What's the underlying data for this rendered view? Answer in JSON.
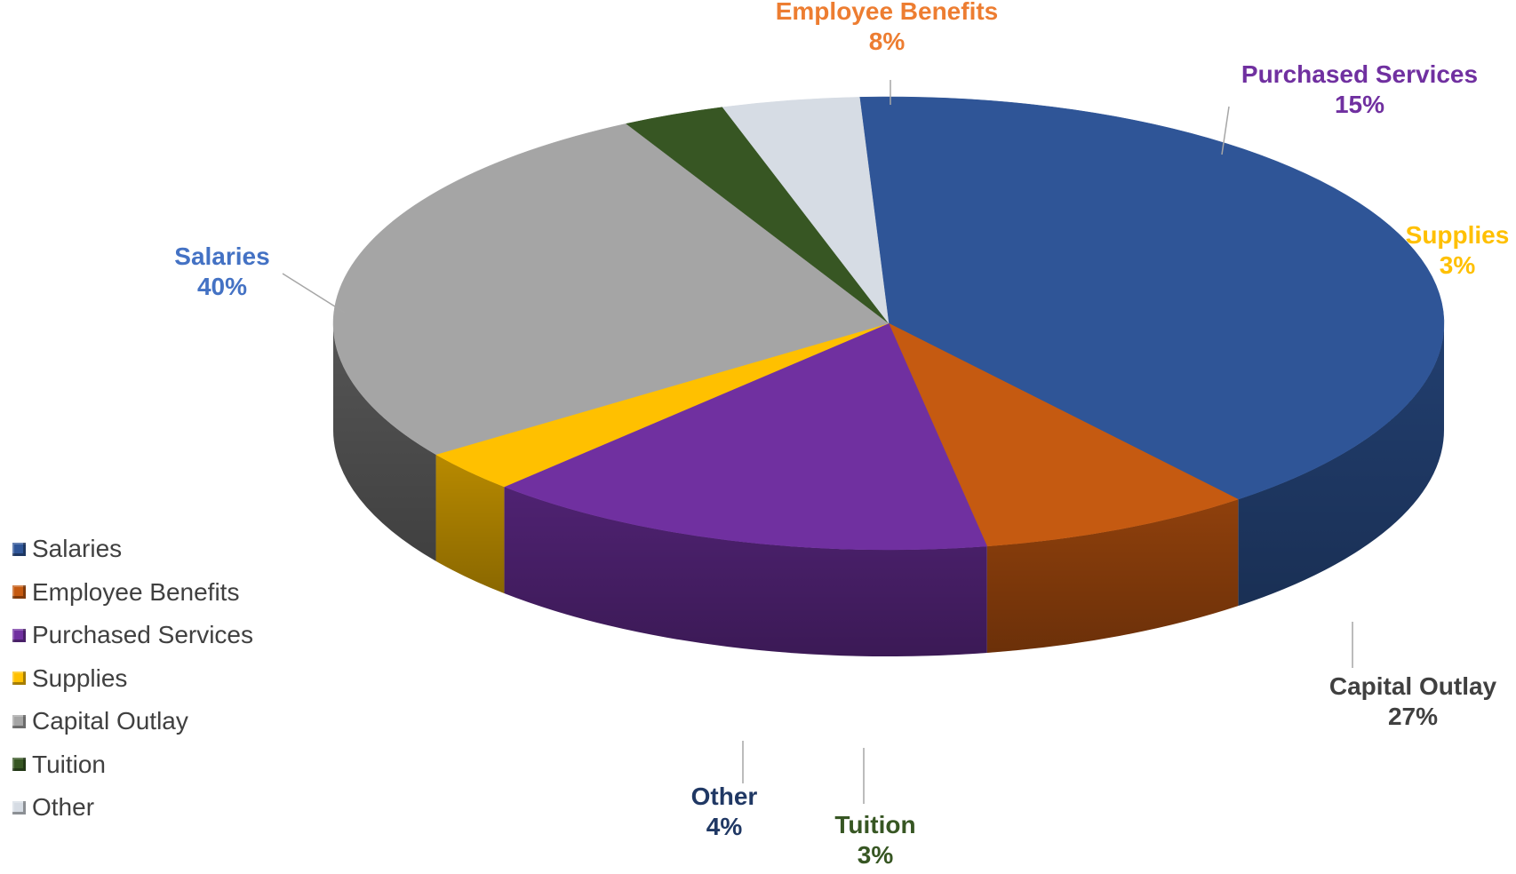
{
  "chart_data": {
    "type": "pie",
    "style": "3d",
    "title": "",
    "slices": [
      {
        "name": "Salaries",
        "value": 40,
        "label": "Salaries",
        "pct_label": "40%",
        "color": "#2F5597",
        "side": "#223F70",
        "label_color": "#4472C4"
      },
      {
        "name": "Employee Benefits",
        "value": 8,
        "label": "Employee Benefits",
        "pct_label": "8%",
        "color": "#C55A11",
        "side": "#8F400C",
        "label_color": "#ED7D31"
      },
      {
        "name": "Purchased Services",
        "value": 15,
        "label": "Purchased Services",
        "pct_label": "15%",
        "color": "#7030A0",
        "side": "#4F2272",
        "label_color": "#7030A0"
      },
      {
        "name": "Supplies",
        "value": 3,
        "label": "Supplies",
        "pct_label": "3%",
        "color": "#FFC000",
        "side": "#B88A00",
        "label_color": "#FFC000"
      },
      {
        "name": "Capital Outlay",
        "value": 27,
        "label": "Capital Outlay",
        "pct_label": "27%",
        "color": "#A5A5A5",
        "side": "#555555",
        "label_color": "#404040"
      },
      {
        "name": "Tuition",
        "value": 3,
        "label": "Tuition",
        "pct_label": "3%",
        "color": "#375623",
        "side": "#1F3214",
        "label_color": "#375623"
      },
      {
        "name": "Other",
        "value": 4,
        "label": "Other",
        "pct_label": "4%",
        "color": "#D6DCE4",
        "side": "#9EA3AA",
        "label_color": "#203864"
      }
    ],
    "legend": {
      "placement": "bottom-left",
      "items": [
        "Salaries",
        "Employee Benefits",
        "Purchased Services",
        "Supplies",
        "Capital Outlay",
        "Tuition",
        "Other"
      ]
    }
  }
}
